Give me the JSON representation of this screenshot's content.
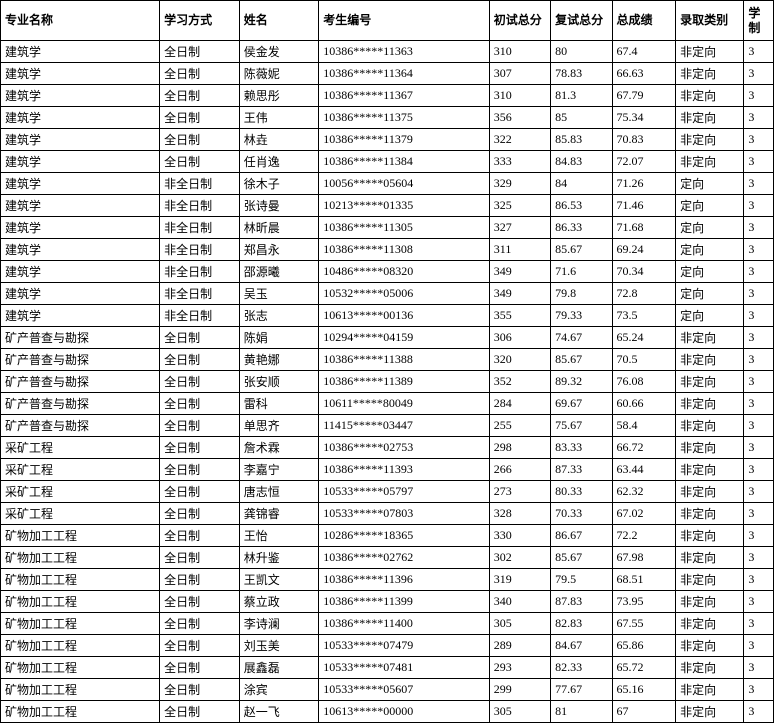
{
  "headers": [
    "专业名称",
    "学习方式",
    "姓名",
    "考生编号",
    "初试总分",
    "复试总分",
    "总成绩",
    "录取类别",
    "学制"
  ],
  "rows": [
    [
      "建筑学",
      "全日制",
      "侯金发",
      "10386*****11363",
      "310",
      "80",
      "67.4",
      "非定向",
      "3"
    ],
    [
      "建筑学",
      "全日制",
      "陈薇妮",
      "10386*****11364",
      "307",
      "78.83",
      "66.63",
      "非定向",
      "3"
    ],
    [
      "建筑学",
      "全日制",
      "赖思彤",
      "10386*****11367",
      "310",
      "81.3",
      "67.79",
      "非定向",
      "3"
    ],
    [
      "建筑学",
      "全日制",
      "王伟",
      "10386*****11375",
      "356",
      "85",
      "75.34",
      "非定向",
      "3"
    ],
    [
      "建筑学",
      "全日制",
      "林垚",
      "10386*****11379",
      "322",
      "85.83",
      "70.83",
      "非定向",
      "3"
    ],
    [
      "建筑学",
      "全日制",
      "任肖逸",
      "10386*****11384",
      "333",
      "84.83",
      "72.07",
      "非定向",
      "3"
    ],
    [
      "建筑学",
      "非全日制",
      "徐木子",
      "10056*****05604",
      "329",
      "84",
      "71.26",
      "定向",
      "3"
    ],
    [
      "建筑学",
      "非全日制",
      "张诗曼",
      "10213*****01335",
      "325",
      "86.53",
      "71.46",
      "定向",
      "3"
    ],
    [
      "建筑学",
      "非全日制",
      "林昕晨",
      "10386*****11305",
      "327",
      "86.33",
      "71.68",
      "定向",
      "3"
    ],
    [
      "建筑学",
      "非全日制",
      "郑昌永",
      "10386*****11308",
      "311",
      "85.67",
      "69.24",
      "定向",
      "3"
    ],
    [
      "建筑学",
      "非全日制",
      "邵源曦",
      "10486*****08320",
      "349",
      "71.6",
      "70.34",
      "定向",
      "3"
    ],
    [
      "建筑学",
      "非全日制",
      "吴玉",
      "10532*****05006",
      "349",
      "79.8",
      "72.8",
      "定向",
      "3"
    ],
    [
      "建筑学",
      "非全日制",
      "张志",
      "10613*****00136",
      "355",
      "79.33",
      "73.5",
      "定向",
      "3"
    ],
    [
      "矿产普查与勘探",
      "全日制",
      "陈娟",
      "10294*****04159",
      "306",
      "74.67",
      "65.24",
      "非定向",
      "3"
    ],
    [
      "矿产普查与勘探",
      "全日制",
      "黄艳娜",
      "10386*****11388",
      "320",
      "85.67",
      "70.5",
      "非定向",
      "3"
    ],
    [
      "矿产普查与勘探",
      "全日制",
      "张安顺",
      "10386*****11389",
      "352",
      "89.32",
      "76.08",
      "非定向",
      "3"
    ],
    [
      "矿产普查与勘探",
      "全日制",
      "雷科",
      "10611*****80049",
      "284",
      "69.67",
      "60.66",
      "非定向",
      "3"
    ],
    [
      "矿产普查与勘探",
      "全日制",
      "单思齐",
      "11415*****03447",
      "255",
      "75.67",
      "58.4",
      "非定向",
      "3"
    ],
    [
      "采矿工程",
      "全日制",
      "詹术霖",
      "10386*****02753",
      "298",
      "83.33",
      "66.72",
      "非定向",
      "3"
    ],
    [
      "采矿工程",
      "全日制",
      "李嘉宁",
      "10386*****11393",
      "266",
      "87.33",
      "63.44",
      "非定向",
      "3"
    ],
    [
      "采矿工程",
      "全日制",
      "唐志恒",
      "10533*****05797",
      "273",
      "80.33",
      "62.32",
      "非定向",
      "3"
    ],
    [
      "采矿工程",
      "全日制",
      "龚锦睿",
      "10533*****07803",
      "328",
      "70.33",
      "67.02",
      "非定向",
      "3"
    ],
    [
      "矿物加工工程",
      "全日制",
      "王怡",
      "10286*****18365",
      "330",
      "86.67",
      "72.2",
      "非定向",
      "3"
    ],
    [
      "矿物加工工程",
      "全日制",
      "林升鉴",
      "10386*****02762",
      "302",
      "85.67",
      "67.98",
      "非定向",
      "3"
    ],
    [
      "矿物加工工程",
      "全日制",
      "王凯文",
      "10386*****11396",
      "319",
      "79.5",
      "68.51",
      "非定向",
      "3"
    ],
    [
      "矿物加工工程",
      "全日制",
      "蔡立政",
      "10386*****11399",
      "340",
      "87.83",
      "73.95",
      "非定向",
      "3"
    ],
    [
      "矿物加工工程",
      "全日制",
      "李诗澜",
      "10386*****11400",
      "305",
      "82.83",
      "67.55",
      "非定向",
      "3"
    ],
    [
      "矿物加工工程",
      "全日制",
      "刘玉美",
      "10533*****07479",
      "289",
      "84.67",
      "65.86",
      "非定向",
      "3"
    ],
    [
      "矿物加工工程",
      "全日制",
      "展鑫磊",
      "10533*****07481",
      "293",
      "82.33",
      "65.72",
      "非定向",
      "3"
    ],
    [
      "矿物加工工程",
      "全日制",
      "涂宾",
      "10533*****05607",
      "299",
      "77.67",
      "65.16",
      "非定向",
      "3"
    ],
    [
      "矿物加工工程",
      "全日制",
      "赵一飞",
      "10613*****00000",
      "305",
      "81",
      "67",
      "非定向",
      "3"
    ]
  ]
}
